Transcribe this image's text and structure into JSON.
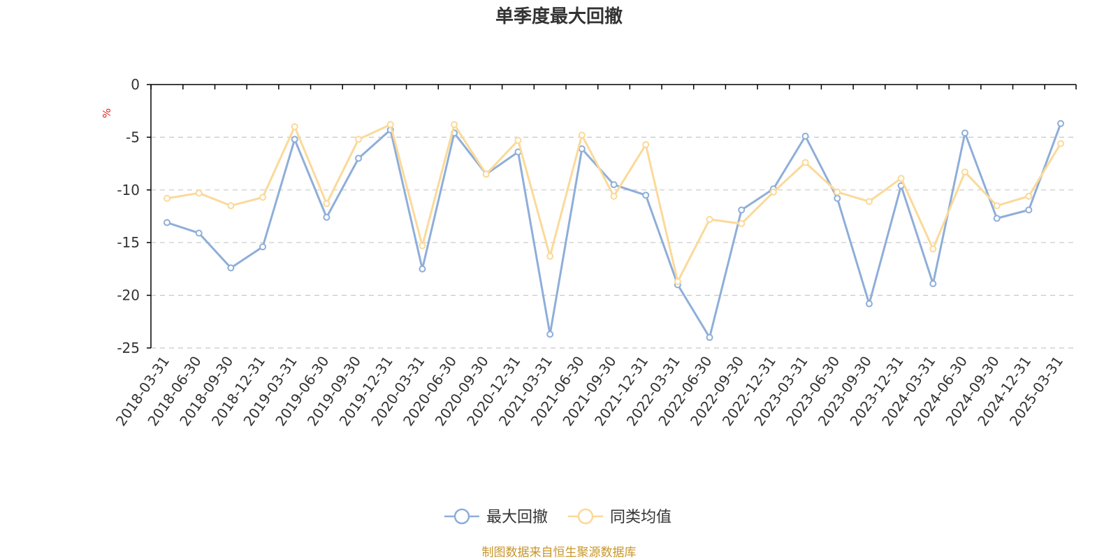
{
  "chart_data": {
    "type": "line",
    "title": "单季度最大回撤",
    "ylabel": "%",
    "ylim": [
      -25,
      0
    ],
    "yticks": [
      0,
      -5,
      -10,
      -15,
      -20,
      -25
    ],
    "grid": true,
    "legend_position": "bottom-center",
    "source": "制图数据来自恒生聚源数据库",
    "categories": [
      "2018-03-31",
      "2018-06-30",
      "2018-09-30",
      "2018-12-31",
      "2019-03-31",
      "2019-06-30",
      "2019-09-30",
      "2019-12-31",
      "2020-03-31",
      "2020-06-30",
      "2020-09-30",
      "2020-12-31",
      "2021-03-31",
      "2021-06-30",
      "2021-09-30",
      "2021-12-31",
      "2022-03-31",
      "2022-06-30",
      "2022-09-30",
      "2022-12-31",
      "2023-03-31",
      "2023-06-30",
      "2023-09-30",
      "2023-12-31",
      "2024-03-31",
      "2024-06-30",
      "2024-09-30",
      "2024-12-31",
      "2025-03-31"
    ],
    "series": [
      {
        "name": "最大回撤",
        "color": "#8eaed9",
        "values": [
          -13.1,
          -14.1,
          -17.4,
          -15.4,
          -5.2,
          -12.6,
          -7.0,
          -4.3,
          -17.5,
          -4.6,
          -8.5,
          -6.4,
          -23.7,
          -6.1,
          -9.5,
          -10.5,
          -19.0,
          -24.0,
          -11.9,
          -9.9,
          -4.9,
          -10.8,
          -20.8,
          -9.6,
          -18.9,
          -4.6,
          -12.7,
          -11.9,
          -3.7
        ]
      },
      {
        "name": "同类均值",
        "color": "#fbd999",
        "values": [
          -10.8,
          -10.3,
          -11.5,
          -10.7,
          -4.0,
          -11.3,
          -5.2,
          -3.8,
          -15.3,
          -3.8,
          -8.5,
          -5.3,
          -16.3,
          -4.8,
          -10.6,
          -5.7,
          -18.7,
          -12.8,
          -13.2,
          -10.2,
          -7.4,
          -10.2,
          -11.1,
          -8.9,
          -15.6,
          -8.3,
          -11.5,
          -10.6,
          -5.6
        ]
      }
    ]
  }
}
